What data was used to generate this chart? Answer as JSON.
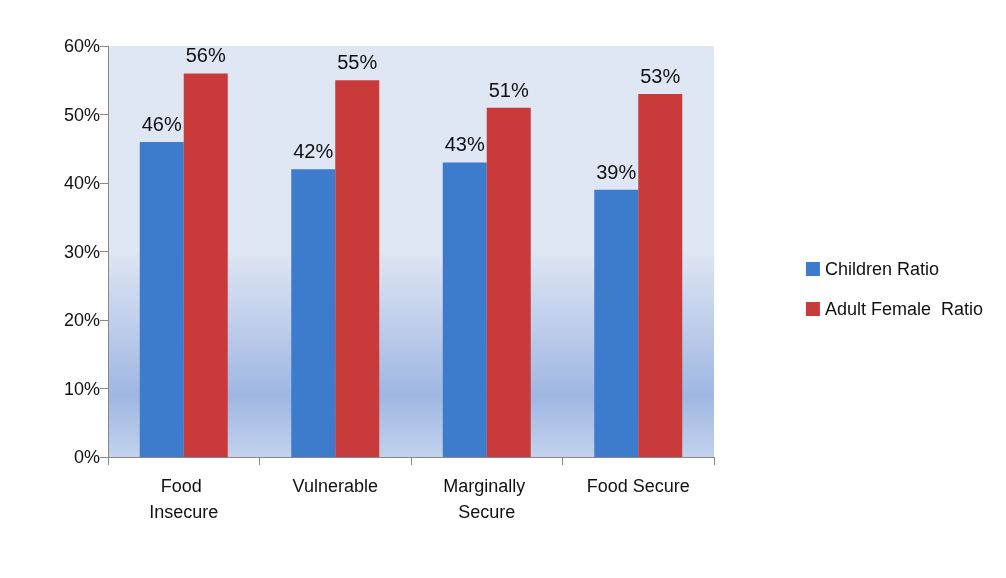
{
  "chart_data": {
    "type": "bar",
    "categories": [
      "Food Insecure",
      "Vulnerable",
      "Marginally Secure",
      "Food Secure"
    ],
    "series": [
      {
        "name": "Children Ratio",
        "color": "#3d7ccc",
        "values": [
          46,
          42,
          43,
          39
        ],
        "value_labels": [
          "46%",
          "42%",
          "43%",
          "39%"
        ]
      },
      {
        "name": "Adult Female  Ratio",
        "color": "#c93b3b",
        "values": [
          56,
          55,
          51,
          53
        ],
        "value_labels": [
          "56%",
          "55%",
          "51%",
          "53%"
        ]
      }
    ],
    "ylim": [
      0,
      60
    ],
    "yticks": [
      {
        "value": 0,
        "label": "0%"
      },
      {
        "value": 10,
        "label": "10%"
      },
      {
        "value": 20,
        "label": "20%"
      },
      {
        "value": 30,
        "label": "30%"
      },
      {
        "value": 40,
        "label": "40%"
      },
      {
        "value": 50,
        "label": "50%"
      },
      {
        "value": 60,
        "label": "60%"
      }
    ],
    "grid": false,
    "legend": "right"
  }
}
